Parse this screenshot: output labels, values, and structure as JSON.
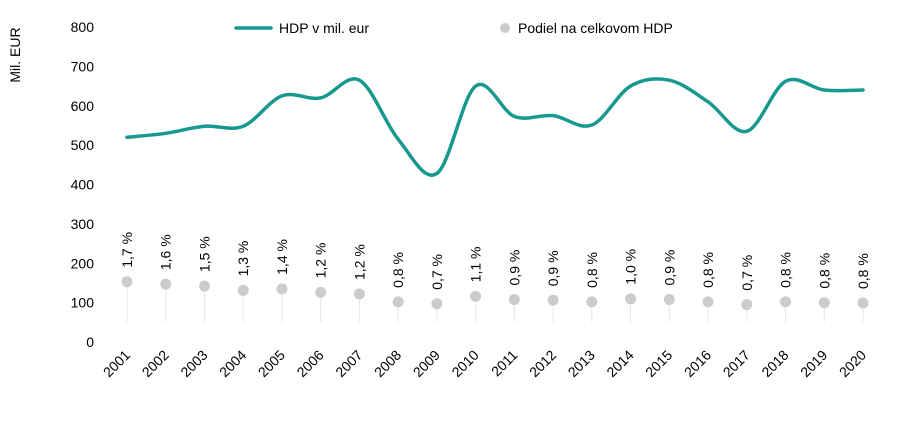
{
  "chart_data": {
    "type": "line",
    "ylabel": "Mil. EUR",
    "ylim": [
      0,
      800
    ],
    "yticks": [
      0,
      100,
      200,
      300,
      400,
      500,
      600,
      700,
      800
    ],
    "categories": [
      "2001",
      "2002",
      "2003",
      "2004",
      "2005",
      "2006",
      "2007",
      "2008",
      "2009",
      "2010",
      "2011",
      "2012",
      "2013",
      "2014",
      "2015",
      "2016",
      "2017",
      "2018",
      "2019",
      "2020"
    ],
    "legend_position": "top",
    "grid": false,
    "series": [
      {
        "name": "HDP v mil. eur",
        "type": "line",
        "color": "#17998f",
        "values": [
          520,
          530,
          548,
          548,
          625,
          620,
          665,
          515,
          428,
          650,
          573,
          575,
          551,
          650,
          665,
          610,
          535,
          662,
          640,
          640
        ]
      },
      {
        "name": "Podiel na celkovom HDP",
        "type": "scatter",
        "color": "#cccccc",
        "values": [
          153,
          147,
          142,
          131,
          135,
          126,
          122,
          102,
          97,
          116,
          108,
          106,
          102,
          110,
          108,
          102,
          95,
          102,
          100,
          99
        ],
        "labels": [
          "1,7 %",
          "1,6 %",
          "1,5 %",
          "1,3 %",
          "1,4 %",
          "1,2 %",
          "1,2 %",
          "0,8 %",
          "0,7 %",
          "1,1 %",
          "0,9 %",
          "0,9 %",
          "0,8 %",
          "1,0 %",
          "0,9 %",
          "0,8 %",
          "0,7 %",
          "0,8 %",
          "0,8 %",
          "0,8 %"
        ]
      }
    ]
  }
}
